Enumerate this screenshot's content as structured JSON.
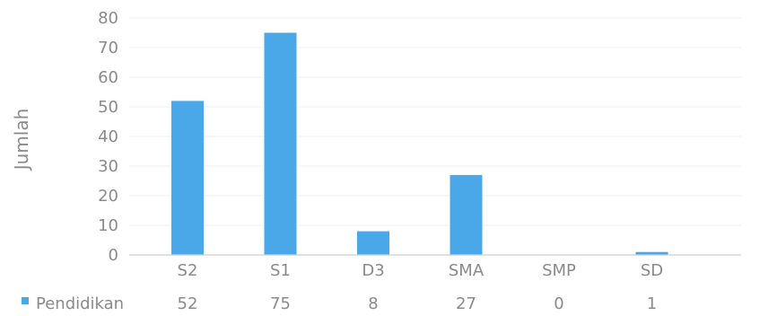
{
  "chart_data": {
    "type": "bar",
    "title": "",
    "xlabel": "",
    "ylabel": "Jumlah",
    "ylim": [
      0,
      80
    ],
    "yticks": [
      0,
      10,
      20,
      30,
      40,
      50,
      60,
      70,
      80
    ],
    "categories": [
      "S2",
      "S1",
      "D3",
      "SMA",
      "SMP",
      "SD"
    ],
    "series": [
      {
        "name": "Pendidikan",
        "values": [
          52,
          75,
          8,
          27,
          0,
          1
        ]
      }
    ],
    "data_table": {
      "series_label": "Pendidikan",
      "values": [
        "52",
        "75",
        "8",
        "27",
        "0",
        "1"
      ]
    },
    "grid": true,
    "legend": "bottom-left data table"
  },
  "colors": {
    "bar": "#4aa8e8",
    "grid": "#efefef",
    "axis": "#cfcfcf",
    "text": "#8a8a8a"
  }
}
